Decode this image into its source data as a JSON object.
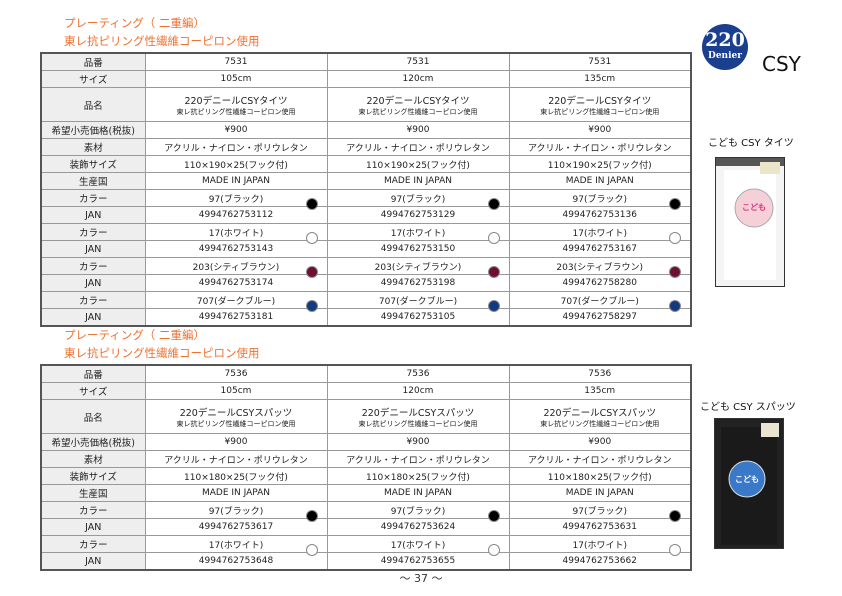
{
  "sections": [
    {
      "title_line1": "プレーティング（ 二重編）",
      "title_line2": "東レ抗ピリング性繊維コーピロン使用",
      "labels": {
        "item_no": "品番",
        "size": "サイズ",
        "name": "品名",
        "price": "希望小売価格(税抜)",
        "material": "素材",
        "package_size": "装飾サイズ",
        "origin": "生産国",
        "color": "カラー",
        "jan": "JAN"
      },
      "columns": [
        {
          "item_no": "7531",
          "size": "105cm",
          "name": "220デニールCSYタイツ",
          "name_sub": "東レ抗ピリング性繊維コーピロン使用",
          "price": "¥900",
          "material": "アクリル・ナイロン・ポリウレタン",
          "package_size": "110×190×25(フック付)",
          "origin": "MADE  IN  JAPAN",
          "colors": [
            {
              "name": "97(ブラック)",
              "jan": "4994762753112",
              "hex": "#000000"
            },
            {
              "name": "17(ホワイト)",
              "jan": "4994762753143",
              "hex": "#ffffff"
            },
            {
              "name": "203(シティブラウン)",
              "jan": "4994762753174",
              "hex": "#6e0f32"
            },
            {
              "name": "707(ダークブルー)",
              "jan": "4994762753181",
              "hex": "#123a80"
            }
          ]
        },
        {
          "item_no": "7531",
          "size": "120cm",
          "name": "220デニールCSYタイツ",
          "name_sub": "東レ抗ピリング性繊維コーピロン使用",
          "price": "¥900",
          "material": "アクリル・ナイロン・ポリウレタン",
          "package_size": "110×190×25(フック付)",
          "origin": "MADE  IN  JAPAN",
          "colors": [
            {
              "name": "97(ブラック)",
              "jan": "4994762753129",
              "hex": "#000000"
            },
            {
              "name": "17(ホワイト)",
              "jan": "4994762753150",
              "hex": "#ffffff"
            },
            {
              "name": "203(シティブラウン)",
              "jan": "4994762753198",
              "hex": "#6e0f32"
            },
            {
              "name": "707(ダークブルー)",
              "jan": "4994762753105",
              "hex": "#123a80"
            }
          ]
        },
        {
          "item_no": "7531",
          "size": "135cm",
          "name": "220デニールCSYタイツ",
          "name_sub": "東レ抗ピリング性繊維コーピロン使用",
          "price": "¥900",
          "material": "アクリル・ナイロン・ポリウレタン",
          "package_size": "110×190×25(フック付)",
          "origin": "MADE  IN  JAPAN",
          "colors": [
            {
              "name": "97(ブラック)",
              "jan": "4994762753136",
              "hex": "#000000"
            },
            {
              "name": "17(ホワイト)",
              "jan": "4994762753167",
              "hex": "#ffffff"
            },
            {
              "name": "203(シティブラウン)",
              "jan": "4994762758280",
              "hex": "#6e0f32"
            },
            {
              "name": "707(ダークブルー)",
              "jan": "4994762758297",
              "hex": "#123a80"
            }
          ]
        }
      ]
    },
    {
      "title_line1": "プレーティング（ 二重編）",
      "title_line2": "東レ抗ピリング性繊維コーピロン使用",
      "labels": {
        "item_no": "品番",
        "size": "サイズ",
        "name": "品名",
        "price": "希望小売価格(税抜)",
        "material": "素材",
        "package_size": "装飾サイズ",
        "origin": "生産国",
        "color": "カラー",
        "jan": "JAN"
      },
      "columns": [
        {
          "item_no": "7536",
          "size": "105cm",
          "name": "220デニールCSYスパッツ",
          "name_sub": "東レ抗ピリング性繊維コーピロン使用",
          "price": "¥900",
          "material": "アクリル・ナイロン・ポリウレタン",
          "package_size": "110×180×25(フック付)",
          "origin": "MADE  IN  JAPAN",
          "colors": [
            {
              "name": "97(ブラック)",
              "jan": "4994762753617",
              "hex": "#000000"
            },
            {
              "name": "17(ホワイト)",
              "jan": "4994762753648",
              "hex": "#ffffff"
            }
          ]
        },
        {
          "item_no": "7536",
          "size": "120cm",
          "name": "220デニールCSYスパッツ",
          "name_sub": "東レ抗ピリング性繊維コーピロン使用",
          "price": "¥900",
          "material": "アクリル・ナイロン・ポリウレタン",
          "package_size": "110×180×25(フック付)",
          "origin": "MADE  IN  JAPAN",
          "colors": [
            {
              "name": "97(ブラック)",
              "jan": "4994762753624",
              "hex": "#000000"
            },
            {
              "name": "17(ホワイト)",
              "jan": "4994762753655",
              "hex": "#ffffff"
            }
          ]
        },
        {
          "item_no": "7536",
          "size": "135cm",
          "name": "220デニールCSYスパッツ",
          "name_sub": "東レ抗ピリング性繊維コーピロン使用",
          "price": "¥900",
          "material": "アクリル・ナイロン・ポリウレタン",
          "package_size": "110×180×25(フック付)",
          "origin": "MADE  IN  JAPAN",
          "colors": [
            {
              "name": "97(ブラック)",
              "jan": "4994762753631",
              "hex": "#000000"
            },
            {
              "name": "17(ホワイト)",
              "jan": "4994762753662",
              "hex": "#ffffff"
            }
          ]
        }
      ]
    }
  ],
  "badge": {
    "number": "220",
    "unit": "Denier",
    "brand": "CSY",
    "color": "#1b3f8f"
  },
  "products": [
    {
      "label": "こども CSY タイツ"
    },
    {
      "label": "こども CSY スパッツ"
    }
  ],
  "footer": {
    "page": "～ 37 ～"
  }
}
